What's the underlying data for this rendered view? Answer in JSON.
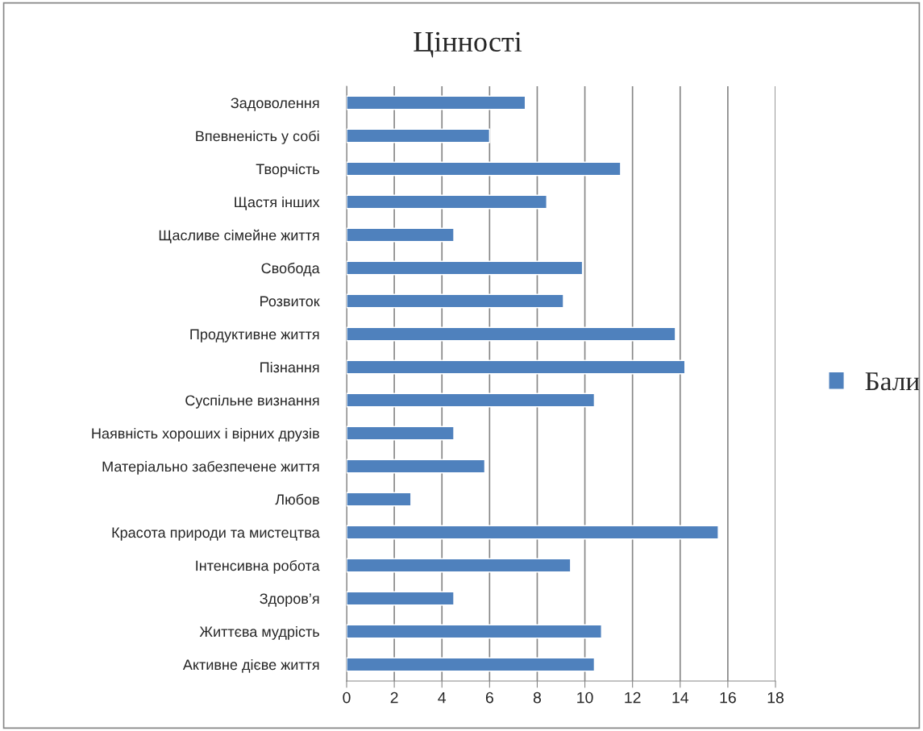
{
  "chart_data": {
    "type": "bar",
    "orientation": "horizontal",
    "title": "Цінності",
    "categories": [
      "Задоволення",
      "Впевненість у собі",
      "Творчість",
      "Щастя інших",
      "Щасливе сімейне життя",
      "Свобода",
      "Розвиток",
      "Продуктивне життя",
      "Пізнання",
      "Суспільне визнання",
      "Наявність хороших і вірних друзів",
      "Матеріально забезпечене життя",
      "Любов",
      "Красота природи та мистецтва",
      "Інтенсивна робота",
      "Здоров’я",
      "Життєва мудрість",
      "Активне дієве життя"
    ],
    "series": [
      {
        "name": "Бали",
        "color": "#4f81bd",
        "values": [
          7.5,
          6.0,
          11.5,
          8.4,
          4.5,
          9.9,
          9.1,
          13.8,
          14.2,
          10.4,
          4.5,
          5.8,
          2.7,
          15.6,
          9.4,
          4.5,
          10.7,
          10.4
        ]
      }
    ],
    "xlim": [
      0,
      18
    ],
    "xticks": [
      0,
      2,
      4,
      6,
      8,
      10,
      12,
      14,
      16,
      18
    ],
    "grid": "x",
    "legend": "right"
  }
}
